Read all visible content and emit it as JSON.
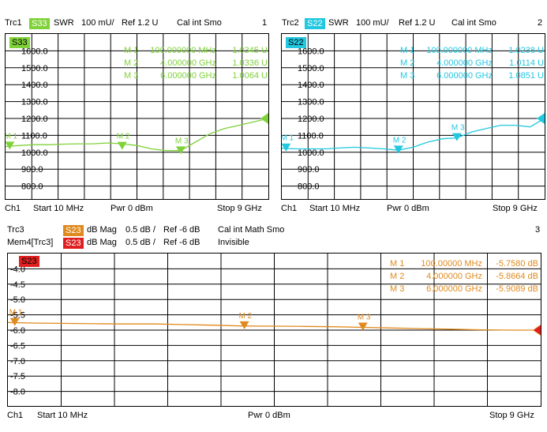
{
  "charts": [
    {
      "header": {
        "trace": "Trc1",
        "param": "S33",
        "format": "SWR",
        "scale": "100 mU/",
        "ref": "Ref 1.2 U",
        "cal": "Cal int Smo",
        "num": "1"
      },
      "footer": {
        "ch": "Ch1",
        "start": "Start  10 MHz",
        "pwr": "Pwr  0 dBm",
        "stop": "Stop  9 GHz"
      },
      "markers_table": [
        {
          "id": "M 1",
          "freq": "100.000000 MHz",
          "val": "1.0345 U"
        },
        {
          "id": "M 2",
          "freq": "4.000000 GHz",
          "val": "1.0336 U"
        },
        {
          "id": "M 3",
          "freq": "6.000000 GHz",
          "val": "1.0064 U"
        }
      ],
      "param_badge": "S33"
    },
    {
      "header": {
        "trace": "Trc2",
        "param": "S22",
        "format": "SWR",
        "scale": "100 mU/",
        "ref": "Ref 1.2 U",
        "cal": "Cal int Smo",
        "num": "2"
      },
      "footer": {
        "ch": "Ch1",
        "start": "Start  10 MHz",
        "pwr": "Pwr  0 dBm",
        "stop": "Stop  9 GHz"
      },
      "markers_table": [
        {
          "id": "M 1",
          "freq": "100.000000 MHz",
          "val": "1.0238 U"
        },
        {
          "id": "M 2",
          "freq": "4.000000 GHz",
          "val": "1.0114 U"
        },
        {
          "id": "M 3",
          "freq": "6.000000 GHz",
          "val": "1.0851 U"
        }
      ],
      "param_badge": "S22"
    },
    {
      "header": {
        "trace": "Trc3",
        "param": "S23",
        "format": "dB Mag",
        "scale": "0.5 dB /",
        "ref": "Ref -6 dB",
        "cal": "Cal int Math Smo",
        "num": "3"
      },
      "header2": {
        "trace": "Mem4[Trc3]",
        "param": "S23",
        "format": "dB Mag",
        "scale": "0.5 dB /",
        "ref": "Ref -6 dB",
        "cal": "Invisible"
      },
      "footer": {
        "ch": "Ch1",
        "start": "Start  10 MHz",
        "pwr": "Pwr  0 dBm",
        "stop": "Stop  9 GHz"
      },
      "markers_table": [
        {
          "id": "M 1",
          "freq": "100.00000 MHz",
          "val": "-5.7580 dB"
        },
        {
          "id": "M 2",
          "freq": "4.000000 GHz",
          "val": "-5.8664 dB"
        },
        {
          "id": "M 3",
          "freq": "6.000000 GHz",
          "val": "-5.9089 dB"
        }
      ],
      "param_badge": "S23"
    }
  ],
  "colors": {
    "trc1": "#7fd23a",
    "trc2": "#22c8e0",
    "trc3": "#e08a1e",
    "mem4": "#e02020"
  },
  "chart_data": [
    {
      "type": "line",
      "series": [
        {
          "name": "S33",
          "x": [
            0.01,
            0.5,
            1,
            1.5,
            2,
            2.5,
            3,
            3.5,
            4,
            4.5,
            5,
            5.5,
            6,
            6.5,
            7,
            7.5,
            8,
            8.5,
            9
          ],
          "y": [
            1.034,
            1.04,
            1.045,
            1.045,
            1.048,
            1.05,
            1.05,
            1.055,
            1.05,
            1.04,
            1.02,
            1.01,
            1.01,
            1.06,
            1.11,
            1.14,
            1.16,
            1.18,
            1.2
          ]
        }
      ],
      "xlim": [
        0.01,
        9
      ],
      "ylim": [
        700,
        1700
      ],
      "y_ticks": [
        "1600.0",
        "1500.0",
        "1400.0",
        "1300.0",
        "1200.0",
        "1100.0",
        "1000.0",
        "900.0",
        "800.0"
      ],
      "markers": [
        {
          "label": "M 1",
          "x": 0.1,
          "y": 1.0345
        },
        {
          "label": "M 2",
          "x": 4,
          "y": 1.0336
        },
        {
          "label": "M 3",
          "x": 6,
          "y": 1.0064
        }
      ]
    },
    {
      "type": "line",
      "series": [
        {
          "name": "S22",
          "x": [
            0.01,
            0.5,
            1,
            1.5,
            2,
            2.5,
            3,
            3.5,
            4,
            4.5,
            5,
            5.5,
            6,
            6.5,
            7,
            7.5,
            8,
            8.5,
            9
          ],
          "y": [
            1.024,
            1.02,
            1.02,
            1.02,
            1.025,
            1.03,
            1.025,
            1.02,
            1.012,
            1.03,
            1.06,
            1.08,
            1.085,
            1.12,
            1.14,
            1.16,
            1.16,
            1.15,
            1.2
          ]
        }
      ],
      "xlim": [
        0.01,
        9
      ],
      "ylim": [
        700,
        1700
      ],
      "y_ticks": [
        "1600.0",
        "1500.0",
        "1400.0",
        "1300.0",
        "1200.0",
        "1100.0",
        "1000.0",
        "900.0",
        "800.0"
      ],
      "markers": [
        {
          "label": "M 1",
          "x": 0.1,
          "y": 1.0238
        },
        {
          "label": "M 2",
          "x": 4,
          "y": 1.0114
        },
        {
          "label": "M 3",
          "x": 6,
          "y": 1.0851
        }
      ]
    },
    {
      "type": "line",
      "series": [
        {
          "name": "S23",
          "x": [
            0.01,
            0.5,
            1,
            1.5,
            2,
            2.5,
            3,
            3.5,
            4,
            4.5,
            5,
            5.5,
            6,
            6.5,
            7,
            7.5,
            8,
            8.5,
            9
          ],
          "y": [
            -5.75,
            -5.77,
            -5.78,
            -5.79,
            -5.8,
            -5.8,
            -5.82,
            -5.84,
            -5.866,
            -5.87,
            -5.88,
            -5.89,
            -5.909,
            -5.93,
            -5.95,
            -5.97,
            -5.99,
            -6.0,
            -6.0
          ]
        }
      ],
      "xlim": [
        0.01,
        9
      ],
      "ylim": [
        -8.5,
        -3.5
      ],
      "y_ticks": [
        "-4.0",
        "-4.5",
        "-5.0",
        "-5.5",
        "-6.0",
        "-6.5",
        "-7.0",
        "-7.5",
        "-8.0"
      ],
      "markers": [
        {
          "label": "M 1",
          "x": 0.1,
          "y": -5.758
        },
        {
          "label": "M 2",
          "x": 4,
          "y": -5.8664
        },
        {
          "label": "M 3",
          "x": 6,
          "y": -5.9089
        }
      ]
    }
  ]
}
